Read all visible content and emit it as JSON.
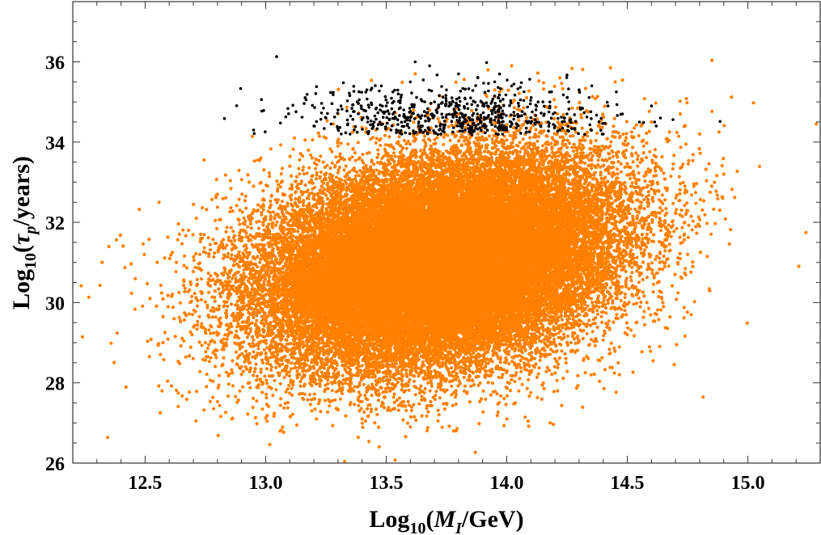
{
  "chart_data": {
    "type": "scatter",
    "title": "",
    "xlabel": {
      "prefix": "Log",
      "sub": "10",
      "open": "(",
      "var": "M",
      "var_sub": "I",
      "rest": "/GeV)"
    },
    "ylabel": {
      "prefix": "Log",
      "sub": "10",
      "open": "(",
      "var": "τ",
      "var_sub": "p",
      "rest": "/years)"
    },
    "xlim": [
      12.2,
      15.3
    ],
    "ylim": [
      26,
      37.5
    ],
    "x_ticks": [
      "12.5",
      "13.0",
      "13.5",
      "14.0",
      "14.5",
      "15.0"
    ],
    "y_ticks": [
      "26",
      "28",
      "30",
      "32",
      "34",
      "36"
    ],
    "grid": false,
    "legend": "none",
    "series": [
      {
        "color": "#ff8000",
        "points": [
          [
            12.52,
            30.1
          ],
          [
            12.55,
            31.0
          ],
          [
            12.57,
            27.8
          ],
          [
            12.62,
            29.6
          ],
          [
            12.68,
            31.8
          ],
          [
            12.75,
            29.0
          ],
          [
            12.8,
            32.7
          ],
          [
            12.86,
            27.1
          ],
          [
            12.9,
            28.4
          ],
          [
            12.95,
            32.9
          ],
          [
            13.07,
            26.9
          ],
          [
            13.1,
            33.4
          ],
          [
            13.2,
            27.6
          ],
          [
            13.3,
            33.9
          ],
          [
            13.4,
            27.1
          ],
          [
            13.5,
            34.3
          ],
          [
            13.6,
            26.9
          ],
          [
            13.72,
            34.5
          ],
          [
            13.78,
            26.8
          ],
          [
            13.92,
            34.6
          ],
          [
            14.0,
            27.1
          ],
          [
            14.02,
            35.9
          ],
          [
            14.18,
            27.0
          ],
          [
            14.22,
            35.6
          ],
          [
            14.35,
            28.2
          ],
          [
            14.45,
            35.5
          ],
          [
            14.5,
            29.2
          ],
          [
            14.6,
            34.5
          ],
          [
            14.65,
            29.9
          ],
          [
            14.72,
            34.7
          ],
          [
            14.75,
            31.2
          ],
          [
            14.8,
            34.2
          ],
          [
            14.85,
            32.9
          ],
          [
            14.9,
            33.2
          ],
          [
            14.62,
            33.4
          ],
          [
            14.38,
            34.4
          ],
          [
            13.95,
            35.3
          ],
          [
            13.62,
            35.7
          ],
          [
            13.25,
            34.1
          ],
          [
            12.98,
            33.6
          ]
        ],
        "cloud": {
          "center": [
            13.72,
            31.0
          ],
          "spread": [
            0.36,
            1.28
          ],
          "correlation": 0.28,
          "count": 42000
        }
      },
      {
        "color": "#000000",
        "points": [
          [
            12.95,
            34.3
          ],
          [
            13.2,
            34.4
          ],
          [
            13.25,
            34.6
          ],
          [
            13.3,
            34.8
          ],
          [
            13.35,
            34.2
          ],
          [
            13.38,
            35.0
          ],
          [
            13.42,
            35.3
          ],
          [
            13.45,
            34.5
          ],
          [
            13.48,
            35.4
          ],
          [
            13.5,
            34.9
          ],
          [
            13.52,
            34.3
          ],
          [
            13.55,
            35.2
          ],
          [
            13.58,
            34.6
          ],
          [
            13.6,
            35.5
          ],
          [
            13.62,
            36.0
          ],
          [
            13.65,
            34.4
          ],
          [
            13.68,
            35.9
          ],
          [
            13.7,
            35.0
          ],
          [
            13.72,
            34.3
          ],
          [
            13.75,
            35.3
          ],
          [
            13.78,
            34.7
          ],
          [
            13.8,
            35.7
          ],
          [
            13.82,
            34.5
          ],
          [
            13.85,
            35.1
          ],
          [
            13.88,
            35.6
          ],
          [
            13.9,
            34.4
          ],
          [
            13.92,
            34.9
          ],
          [
            13.95,
            35.5
          ],
          [
            13.98,
            34.6
          ],
          [
            14.0,
            34.3
          ],
          [
            14.02,
            35.4
          ],
          [
            14.05,
            34.9
          ],
          [
            14.1,
            34.5
          ],
          [
            14.15,
            35.0
          ],
          [
            14.2,
            34.4
          ],
          [
            14.25,
            34.7
          ],
          [
            14.3,
            35.3
          ],
          [
            14.35,
            34.3
          ],
          [
            14.42,
            34.9
          ],
          [
            14.48,
            34.7
          ],
          [
            14.55,
            34.5
          ],
          [
            14.6,
            34.9
          ],
          [
            14.62,
            34.4
          ],
          [
            14.4,
            34.2
          ],
          [
            14.22,
            34.3
          ]
        ],
        "cloud": {
          "center": [
            13.75,
            34.55
          ],
          "spread": [
            0.33,
            0.42
          ],
          "correlation": 0.0,
          "count": 620,
          "ymin": 34.18
        }
      }
    ]
  }
}
